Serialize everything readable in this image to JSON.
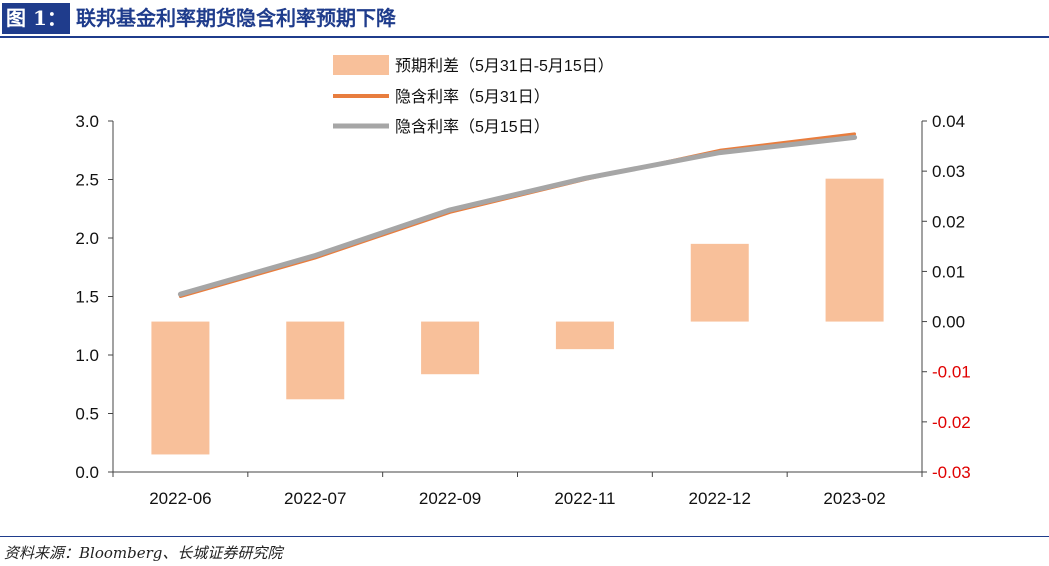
{
  "header": {
    "figure_label": "图 1：",
    "title": "联邦基金利率期货隐含利率预期下降"
  },
  "footer": {
    "source": "资料来源：Bloomberg、长城证券研究院"
  },
  "colors": {
    "header_blue": "#1f3c8c",
    "bar_fill": "#f8c09a",
    "line_0531": "#e87d3e",
    "line_0515": "#a6a6a6",
    "negative_tick": "#e00000"
  },
  "chart_data": {
    "type": "bar+line",
    "categories": [
      "2022-06",
      "2022-07",
      "2022-09",
      "2022-11",
      "2022-12",
      "2023-02"
    ],
    "legend": {
      "placement": "top-center",
      "items": [
        "预期利差（5月31日-5月15日）",
        "隐含利率（5月31日）",
        "隐含利率（5月15日）"
      ]
    },
    "y_left": {
      "ylim": [
        0.0,
        3.0
      ],
      "ticks": [
        "3.0",
        "2.5",
        "2.0",
        "1.5",
        "1.0",
        "0.5",
        "0.0"
      ]
    },
    "y_right": {
      "ylim": [
        -0.03,
        0.04
      ],
      "ticks": [
        "0.04",
        "0.03",
        "0.02",
        "0.01",
        "0.00",
        "-0.01",
        "-0.02",
        "-0.03"
      ]
    },
    "series": [
      {
        "name": "预期利差（5月31日-5月15日）",
        "kind": "bar",
        "axis": "right",
        "values": [
          -0.0265,
          -0.0155,
          -0.0105,
          -0.0055,
          0.0155,
          0.0285
        ]
      },
      {
        "name": "隐含利率（5月31日）",
        "kind": "line",
        "axis": "left",
        "values": [
          1.5,
          1.83,
          2.22,
          2.5,
          2.75,
          2.89
        ]
      },
      {
        "name": "隐含利率（5月15日）",
        "kind": "line",
        "axis": "left",
        "values": [
          1.52,
          1.85,
          2.24,
          2.51,
          2.73,
          2.86
        ]
      }
    ]
  }
}
